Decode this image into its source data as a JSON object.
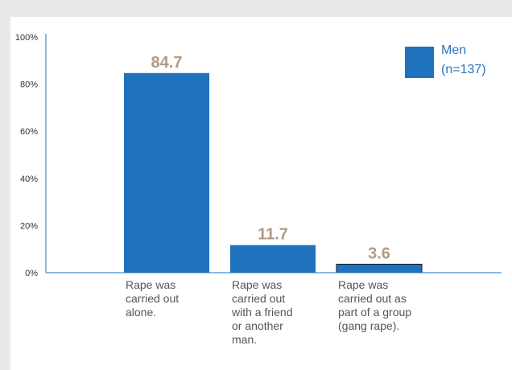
{
  "chart_data": {
    "type": "bar",
    "title": "",
    "xlabel": "",
    "ylabel": "",
    "ylim": [
      0,
      100
    ],
    "yticks": [
      "0%",
      "20%",
      "40%",
      "60%",
      "80%",
      "100%"
    ],
    "ytick_values": [
      0,
      20,
      40,
      60,
      80,
      100
    ],
    "grid": false,
    "legend_position": "top-right",
    "categories": [
      [
        "Rape was",
        "carried out",
        "alone."
      ],
      [
        "Rape was",
        "carried out",
        "with a friend",
        "or another",
        "man."
      ],
      [
        "Rape was",
        "carried out as",
        "part of a group",
        "(gang rape)."
      ]
    ],
    "series": [
      {
        "name_lines": [
          "Men",
          "(n=137)"
        ],
        "values": [
          84.7,
          11.7,
          3.6
        ],
        "value_labels": [
          "84.7",
          "11.7",
          "3.6"
        ],
        "color": "#1f72bd"
      }
    ],
    "axis_color": "#1f72bd",
    "value_label_color": "#b09a86",
    "last_bar_outline": "#1a1a1a"
  }
}
